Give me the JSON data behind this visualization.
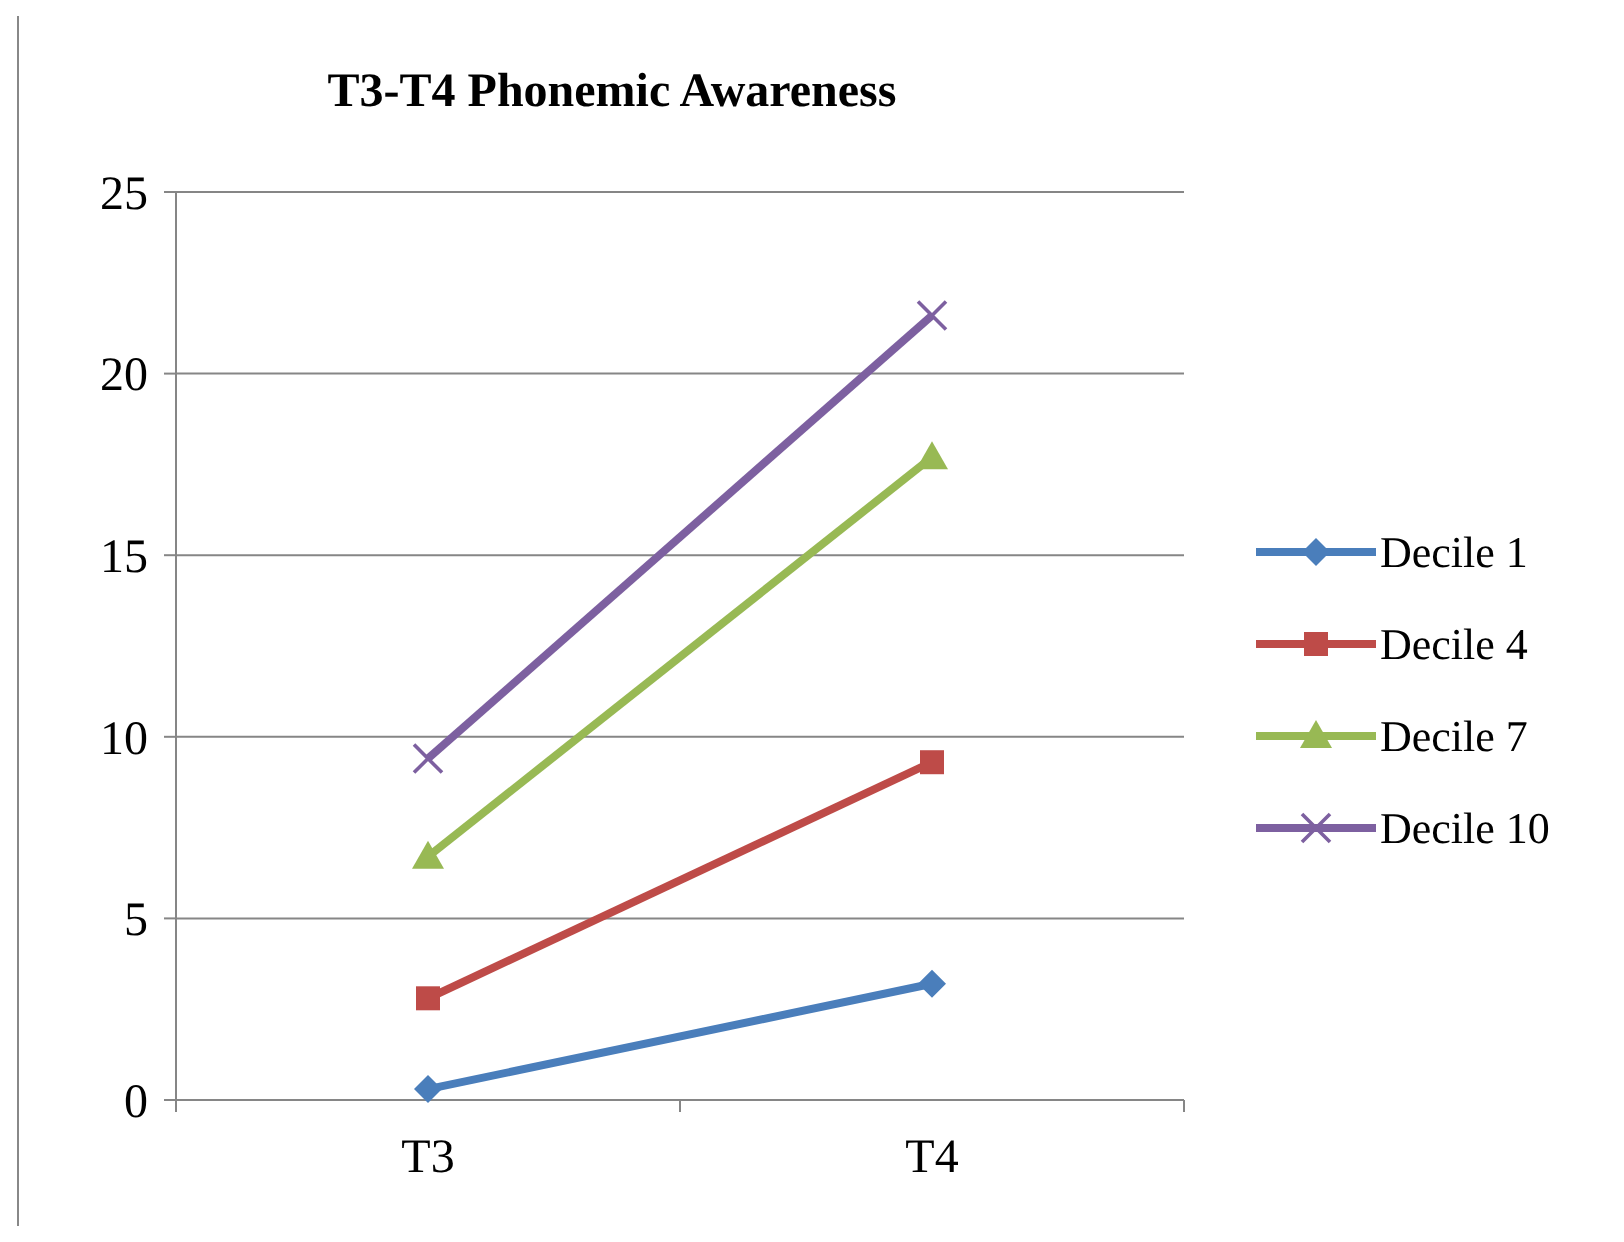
{
  "chart_data": {
    "type": "line",
    "title": "T3-T4 Phonemic Awareness",
    "categories": [
      "T3",
      "T4"
    ],
    "ylim": [
      0,
      25
    ],
    "yticks": [
      0,
      5,
      10,
      15,
      20,
      25
    ],
    "grid": "y",
    "legend": "right",
    "series": [
      {
        "name": "Decile 1",
        "color": "#4a7ebb",
        "marker": "diamond",
        "values": [
          0.3,
          3.2
        ]
      },
      {
        "name": "Decile 4",
        "color": "#be4b48",
        "marker": "square",
        "values": [
          2.8,
          9.3
        ]
      },
      {
        "name": "Decile 7",
        "color": "#98b954",
        "marker": "triangle",
        "values": [
          6.7,
          17.7
        ]
      },
      {
        "name": "Decile 10",
        "color": "#7d60a0",
        "marker": "cross",
        "values": [
          9.4,
          21.6
        ]
      }
    ]
  }
}
